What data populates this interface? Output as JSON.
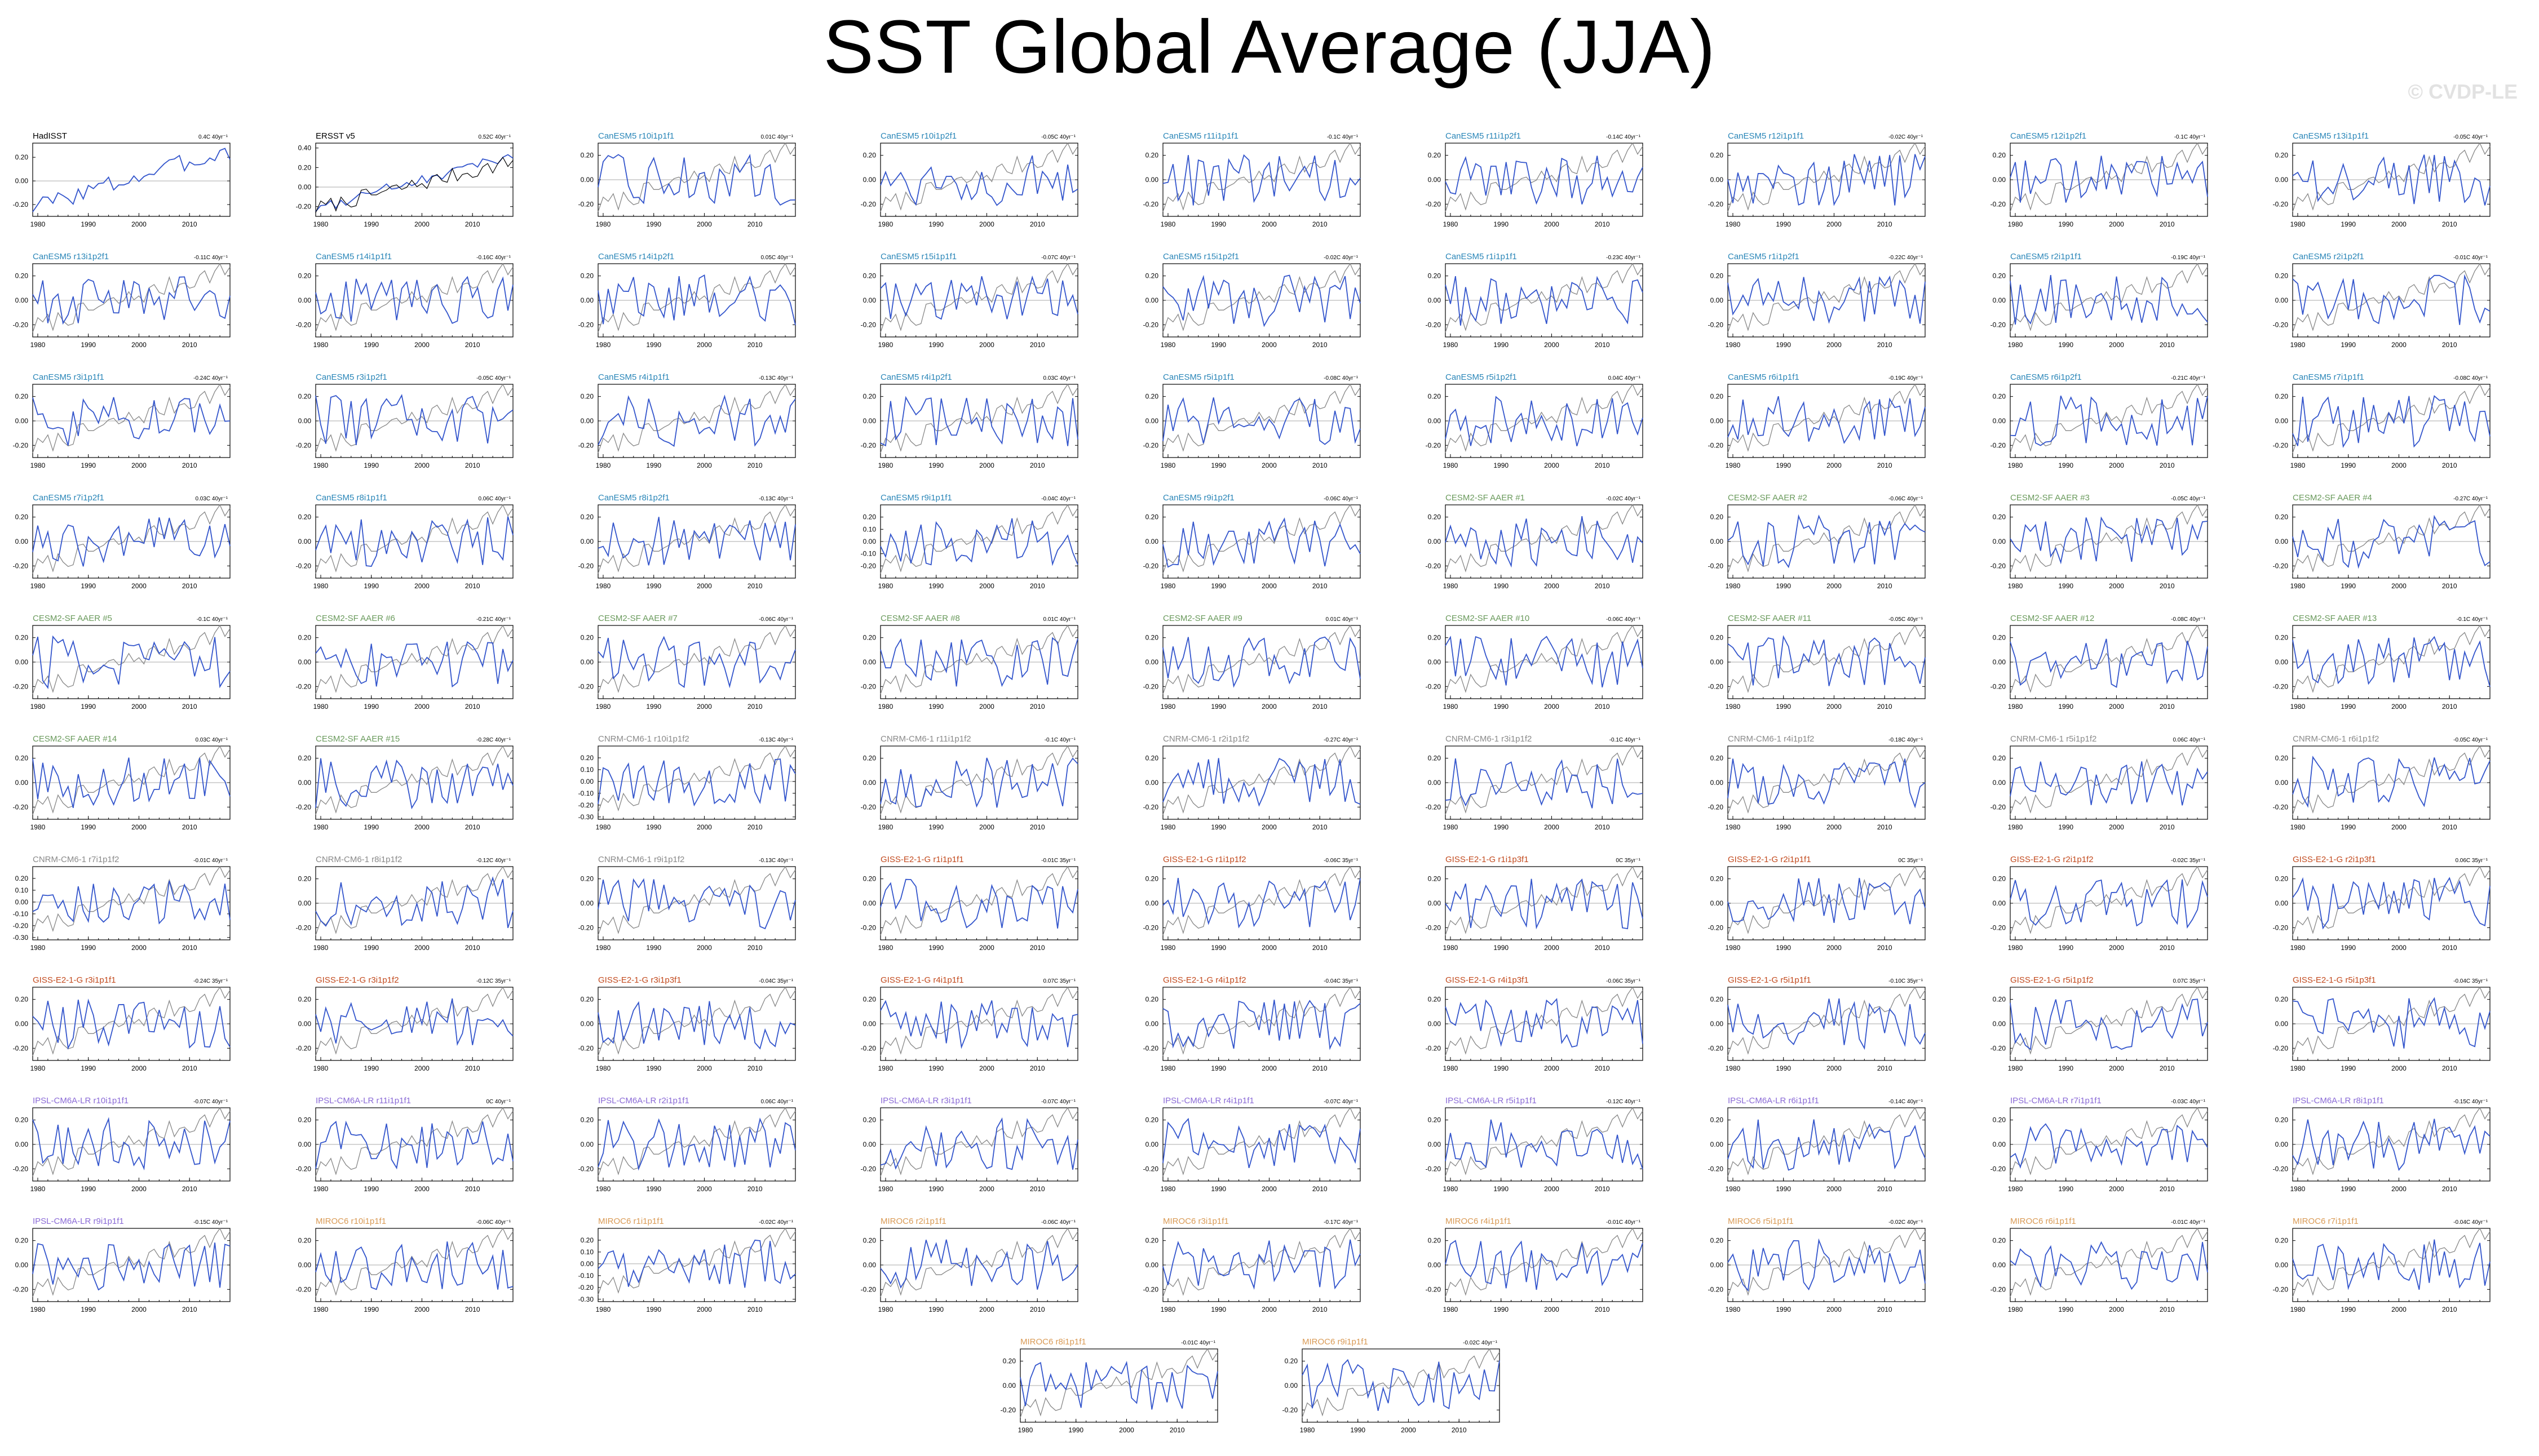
{
  "title": "SST Global Average (JJA)",
  "watermark": "© CVDP-LE",
  "colors": {
    "obs_line": "#000000",
    "model_line": "#3355cc",
    "obs_overlay": "#888888",
    "zero_line": "#aaaaaa",
    "obs_title": "#000000",
    "CanESM5": "#2a86b8",
    "CESM2-SF AAER": "#6a9a5c",
    "CNRM-CM6-1": "#8a8a8a",
    "GISS-E2-1-G": "#c24a1e",
    "IPSL-CM6A-LR": "#8a6ad6",
    "MIROC6": "#d99a55"
  },
  "chart_data": {
    "type": "line",
    "xlabel": "",
    "ylabel": "",
    "xlim": [
      1979,
      2018
    ],
    "xticks": [
      1980,
      1990,
      2000,
      2010
    ],
    "series_legend": [],
    "panels": [
      {
        "name": "HadISST",
        "group": "obs",
        "stat": "0.4C 40yr⁻¹",
        "ylim": [
          -0.3,
          0.32
        ],
        "yticks": [
          -0.2,
          0.0,
          0.2
        ]
      },
      {
        "name": "ERSST v5",
        "group": "obs",
        "stat": "0.52C 40yr⁻¹",
        "ylim": [
          -0.3,
          0.45
        ],
        "yticks": [
          -0.2,
          0.0,
          0.2,
          0.4
        ]
      },
      {
        "name": "CanESM5 r10i1p1f1",
        "group": "CanESM5",
        "stat": "0.01C 40yr⁻¹"
      },
      {
        "name": "CanESM5 r10i1p2f1",
        "group": "CanESM5",
        "stat": "-0.05C 40yr⁻¹"
      },
      {
        "name": "CanESM5 r11i1p1f1",
        "group": "CanESM5",
        "stat": "-0.1C 40yr⁻¹"
      },
      {
        "name": "CanESM5 r11i1p2f1",
        "group": "CanESM5",
        "stat": "-0.14C 40yr⁻¹"
      },
      {
        "name": "CanESM5 r12i1p1f1",
        "group": "CanESM5",
        "stat": "-0.02C 40yr⁻¹"
      },
      {
        "name": "CanESM5 r12i1p2f1",
        "group": "CanESM5",
        "stat": "-0.1C 40yr⁻¹"
      },
      {
        "name": "CanESM5 r13i1p1f1",
        "group": "CanESM5",
        "stat": "-0.05C 40yr⁻¹"
      },
      {
        "name": "CanESM5 r13i1p2f1",
        "group": "CanESM5",
        "stat": "-0.11C 40yr⁻¹"
      },
      {
        "name": "CanESM5 r14i1p1f1",
        "group": "CanESM5",
        "stat": "-0.16C 40yr⁻¹"
      },
      {
        "name": "CanESM5 r14i1p2f1",
        "group": "CanESM5",
        "stat": "0.05C 40yr⁻¹"
      },
      {
        "name": "CanESM5 r15i1p1f1",
        "group": "CanESM5",
        "stat": "-0.07C 40yr⁻¹"
      },
      {
        "name": "CanESM5 r15i1p2f1",
        "group": "CanESM5",
        "stat": "-0.02C 40yr⁻¹"
      },
      {
        "name": "CanESM5 r1i1p1f1",
        "group": "CanESM5",
        "stat": "-0.23C 40yr⁻¹"
      },
      {
        "name": "CanESM5 r1i1p2f1",
        "group": "CanESM5",
        "stat": "-0.22C 40yr⁻¹"
      },
      {
        "name": "CanESM5 r2i1p1f1",
        "group": "CanESM5",
        "stat": "-0.19C 40yr⁻¹"
      },
      {
        "name": "CanESM5 r2i1p2f1",
        "group": "CanESM5",
        "stat": "-0.01C 40yr⁻¹"
      },
      {
        "name": "CanESM5 r3i1p1f1",
        "group": "CanESM5",
        "stat": "-0.24C 40yr⁻¹"
      },
      {
        "name": "CanESM5 r3i1p2f1",
        "group": "CanESM5",
        "stat": "-0.05C 40yr⁻¹"
      },
      {
        "name": "CanESM5 r4i1p1f1",
        "group": "CanESM5",
        "stat": "-0.13C 40yr⁻¹"
      },
      {
        "name": "CanESM5 r4i1p2f1",
        "group": "CanESM5",
        "stat": "0.03C 40yr⁻¹"
      },
      {
        "name": "CanESM5 r5i1p1f1",
        "group": "CanESM5",
        "stat": "-0.08C 40yr⁻¹"
      },
      {
        "name": "CanESM5 r5i1p2f1",
        "group": "CanESM5",
        "stat": "0.04C 40yr⁻¹"
      },
      {
        "name": "CanESM5 r6i1p1f1",
        "group": "CanESM5",
        "stat": "-0.19C 40yr⁻¹"
      },
      {
        "name": "CanESM5 r6i1p2f1",
        "group": "CanESM5",
        "stat": "-0.21C 40yr⁻¹"
      },
      {
        "name": "CanESM5 r7i1p1f1",
        "group": "CanESM5",
        "stat": "-0.08C 40yr⁻¹"
      },
      {
        "name": "CanESM5 r7i1p2f1",
        "group": "CanESM5",
        "stat": "0.03C 40yr⁻¹"
      },
      {
        "name": "CanESM5 r8i1p1f1",
        "group": "CanESM5",
        "stat": "0.06C 40yr⁻¹"
      },
      {
        "name": "CanESM5 r8i1p2f1",
        "group": "CanESM5",
        "stat": "-0.13C 40yr⁻¹"
      },
      {
        "name": "CanESM5 r9i1p1f1",
        "group": "CanESM5",
        "stat": "-0.04C 40yr⁻¹",
        "ylim": [
          -0.3,
          0.3
        ],
        "yticks": [
          -0.2,
          -0.1,
          0.0,
          0.1,
          0.2
        ]
      },
      {
        "name": "CanESM5 r9i1p2f1",
        "group": "CanESM5",
        "stat": "-0.06C 40yr⁻¹"
      },
      {
        "name": "CESM2-SF AAER #1",
        "group": "CESM2-SF AAER",
        "stat": "-0.02C 40yr⁻¹"
      },
      {
        "name": "CESM2-SF AAER #2",
        "group": "CESM2-SF AAER",
        "stat": "-0.06C 40yr⁻¹"
      },
      {
        "name": "CESM2-SF AAER #3",
        "group": "CESM2-SF AAER",
        "stat": "-0.05C 40yr⁻¹"
      },
      {
        "name": "CESM2-SF AAER #4",
        "group": "CESM2-SF AAER",
        "stat": "-0.27C 40yr⁻¹"
      },
      {
        "name": "CESM2-SF AAER #5",
        "group": "CESM2-SF AAER",
        "stat": "-0.1C 40yr⁻¹"
      },
      {
        "name": "CESM2-SF AAER #6",
        "group": "CESM2-SF AAER",
        "stat": "-0.21C 40yr⁻¹"
      },
      {
        "name": "CESM2-SF AAER #7",
        "group": "CESM2-SF AAER",
        "stat": "-0.06C 40yr⁻¹"
      },
      {
        "name": "CESM2-SF AAER #8",
        "group": "CESM2-SF AAER",
        "stat": "0.01C 40yr⁻¹"
      },
      {
        "name": "CESM2-SF AAER #9",
        "group": "CESM2-SF AAER",
        "stat": "0.01C 40yr⁻¹"
      },
      {
        "name": "CESM2-SF AAER #10",
        "group": "CESM2-SF AAER",
        "stat": "-0.06C 40yr⁻¹"
      },
      {
        "name": "CESM2-SF AAER #11",
        "group": "CESM2-SF AAER",
        "stat": "-0.05C 40yr⁻¹"
      },
      {
        "name": "CESM2-SF AAER #12",
        "group": "CESM2-SF AAER",
        "stat": "-0.08C 40yr⁻¹"
      },
      {
        "name": "CESM2-SF AAER #13",
        "group": "CESM2-SF AAER",
        "stat": "-0.1C 40yr⁻¹"
      },
      {
        "name": "CESM2-SF AAER #14",
        "group": "CESM2-SF AAER",
        "stat": "0.03C 40yr⁻¹"
      },
      {
        "name": "CESM2-SF AAER #15",
        "group": "CESM2-SF AAER",
        "stat": "-0.28C 40yr⁻¹"
      },
      {
        "name": "CNRM-CM6-1 r10i1p1f2",
        "group": "CNRM-CM6-1",
        "stat": "-0.13C 40yr⁻¹",
        "ylim": [
          -0.32,
          0.3
        ],
        "yticks": [
          -0.3,
          -0.2,
          -0.1,
          0.0,
          0.1,
          0.2
        ]
      },
      {
        "name": "CNRM-CM6-1 r11i1p1f2",
        "group": "CNRM-CM6-1",
        "stat": "-0.1C 40yr⁻¹"
      },
      {
        "name": "CNRM-CM6-1 r2i1p1f2",
        "group": "CNRM-CM6-1",
        "stat": "-0.27C 40yr⁻¹"
      },
      {
        "name": "CNRM-CM6-1 r3i1p1f2",
        "group": "CNRM-CM6-1",
        "stat": "-0.1C 40yr⁻¹"
      },
      {
        "name": "CNRM-CM6-1 r4i1p1f2",
        "group": "CNRM-CM6-1",
        "stat": "-0.18C 40yr⁻¹"
      },
      {
        "name": "CNRM-CM6-1 r5i1p1f2",
        "group": "CNRM-CM6-1",
        "stat": "0.06C 40yr⁻¹"
      },
      {
        "name": "CNRM-CM6-1 r6i1p1f2",
        "group": "CNRM-CM6-1",
        "stat": "-0.05C 40yr⁻¹"
      },
      {
        "name": "CNRM-CM6-1 r7i1p1f2",
        "group": "CNRM-CM6-1",
        "stat": "-0.01C 40yr⁻¹",
        "ylim": [
          -0.32,
          0.3
        ],
        "yticks": [
          -0.3,
          -0.2,
          -0.1,
          0.0,
          0.1,
          0.2
        ]
      },
      {
        "name": "CNRM-CM6-1 r8i1p1f2",
        "group": "CNRM-CM6-1",
        "stat": "-0.12C 40yr⁻¹"
      },
      {
        "name": "CNRM-CM6-1 r9i1p1f2",
        "group": "CNRM-CM6-1",
        "stat": "-0.13C 40yr⁻¹"
      },
      {
        "name": "GISS-E2-1-G r1i1p1f1",
        "group": "GISS-E2-1-G",
        "stat": "-0.01C 35yr⁻¹"
      },
      {
        "name": "GISS-E2-1-G r1i1p1f2",
        "group": "GISS-E2-1-G",
        "stat": "-0.06C 35yr⁻¹"
      },
      {
        "name": "GISS-E2-1-G r1i1p3f1",
        "group": "GISS-E2-1-G",
        "stat": "0C 35yr⁻¹"
      },
      {
        "name": "GISS-E2-1-G r2i1p1f1",
        "group": "GISS-E2-1-G",
        "stat": "0C 35yr⁻¹"
      },
      {
        "name": "GISS-E2-1-G r2i1p1f2",
        "group": "GISS-E2-1-G",
        "stat": "-0.02C 35yr⁻¹"
      },
      {
        "name": "GISS-E2-1-G r2i1p3f1",
        "group": "GISS-E2-1-G",
        "stat": "0.06C 35yr⁻¹"
      },
      {
        "name": "GISS-E2-1-G r3i1p1f1",
        "group": "GISS-E2-1-G",
        "stat": "-0.24C 35yr⁻¹"
      },
      {
        "name": "GISS-E2-1-G r3i1p1f2",
        "group": "GISS-E2-1-G",
        "stat": "-0.12C 35yr⁻¹"
      },
      {
        "name": "GISS-E2-1-G r3i1p3f1",
        "group": "GISS-E2-1-G",
        "stat": "-0.04C 35yr⁻¹"
      },
      {
        "name": "GISS-E2-1-G r4i1p1f1",
        "group": "GISS-E2-1-G",
        "stat": "0.07C 35yr⁻¹"
      },
      {
        "name": "GISS-E2-1-G r4i1p1f2",
        "group": "GISS-E2-1-G",
        "stat": "-0.04C 35yr⁻¹"
      },
      {
        "name": "GISS-E2-1-G r4i1p3f1",
        "group": "GISS-E2-1-G",
        "stat": "-0.06C 35yr⁻¹"
      },
      {
        "name": "GISS-E2-1-G r5i1p1f1",
        "group": "GISS-E2-1-G",
        "stat": "-0.10C 35yr⁻¹"
      },
      {
        "name": "GISS-E2-1-G r5i1p1f2",
        "group": "GISS-E2-1-G",
        "stat": "0.07C 35yr⁻¹"
      },
      {
        "name": "GISS-E2-1-G r5i1p3f1",
        "group": "GISS-E2-1-G",
        "stat": "-0.04C 35yr⁻¹"
      },
      {
        "name": "IPSL-CM6A-LR r10i1p1f1",
        "group": "IPSL-CM6A-LR",
        "stat": "-0.07C 40yr⁻¹"
      },
      {
        "name": "IPSL-CM6A-LR r11i1p1f1",
        "group": "IPSL-CM6A-LR",
        "stat": "0C 40yr⁻¹"
      },
      {
        "name": "IPSL-CM6A-LR r2i1p1f1",
        "group": "IPSL-CM6A-LR",
        "stat": "0.06C 40yr⁻¹"
      },
      {
        "name": "IPSL-CM6A-LR r3i1p1f1",
        "group": "IPSL-CM6A-LR",
        "stat": "-0.07C 40yr⁻¹"
      },
      {
        "name": "IPSL-CM6A-LR r4i1p1f1",
        "group": "IPSL-CM6A-LR",
        "stat": "-0.07C 40yr⁻¹"
      },
      {
        "name": "IPSL-CM6A-LR r5i1p1f1",
        "group": "IPSL-CM6A-LR",
        "stat": "-0.12C 40yr⁻¹"
      },
      {
        "name": "IPSL-CM6A-LR r6i1p1f1",
        "group": "IPSL-CM6A-LR",
        "stat": "-0.14C 40yr⁻¹"
      },
      {
        "name": "IPSL-CM6A-LR r7i1p1f1",
        "group": "IPSL-CM6A-LR",
        "stat": "-0.03C 40yr⁻¹"
      },
      {
        "name": "IPSL-CM6A-LR r8i1p1f1",
        "group": "IPSL-CM6A-LR",
        "stat": "-0.15C 40yr⁻¹"
      },
      {
        "name": "IPSL-CM6A-LR r9i1p1f1",
        "group": "IPSL-CM6A-LR",
        "stat": "-0.15C 40yr⁻¹"
      },
      {
        "name": "MIROC6 r10i1p1f1",
        "group": "MIROC6",
        "stat": "-0.06C 40yr⁻¹"
      },
      {
        "name": "MIROC6 r1i1p1f1",
        "group": "MIROC6",
        "stat": "-0.02C 40yr⁻¹",
        "ylim": [
          -0.32,
          0.3
        ],
        "yticks": [
          -0.3,
          -0.2,
          -0.1,
          0.0,
          0.1,
          0.2
        ]
      },
      {
        "name": "MIROC6 r2i1p1f1",
        "group": "MIROC6",
        "stat": "-0.06C 40yr⁻¹"
      },
      {
        "name": "MIROC6 r3i1p1f1",
        "group": "MIROC6",
        "stat": "-0.17C 40yr⁻¹"
      },
      {
        "name": "MIROC6 r4i1p1f1",
        "group": "MIROC6",
        "stat": "-0.01C 40yr⁻¹"
      },
      {
        "name": "MIROC6 r5i1p1f1",
        "group": "MIROC6",
        "stat": "-0.02C 40yr⁻¹"
      },
      {
        "name": "MIROC6 r6i1p1f1",
        "group": "MIROC6",
        "stat": "-0.01C 40yr⁻¹"
      },
      {
        "name": "MIROC6 r7i1p1f1",
        "group": "MIROC6",
        "stat": "-0.04C 40yr⁻¹"
      },
      {
        "name": "MIROC6 r8i1p1f1",
        "group": "MIROC6",
        "stat": "-0.01C 40yr⁻¹"
      },
      {
        "name": "MIROC6 r9i1p1f1",
        "group": "MIROC6",
        "stat": "-0.02C 40yr⁻¹"
      }
    ]
  }
}
